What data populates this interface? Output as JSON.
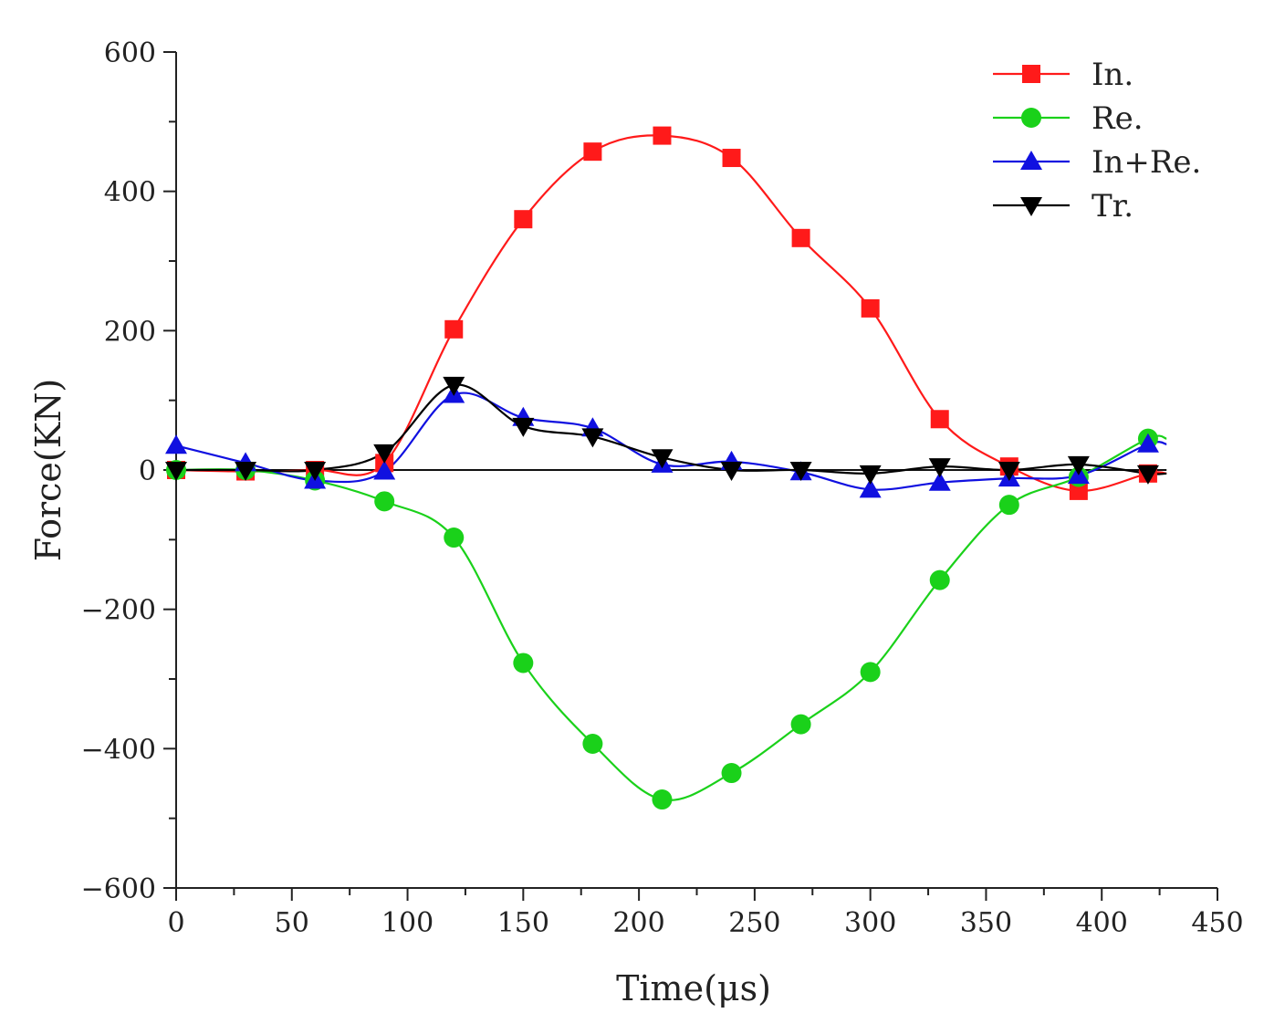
{
  "chart_data": {
    "type": "line",
    "title": "",
    "xlabel": "Time(μs)",
    "ylabel": "Force(KN)",
    "xlim": [
      0,
      450
    ],
    "ylim": [
      -600,
      600
    ],
    "xticks": [
      0,
      50,
      100,
      150,
      200,
      250,
      300,
      350,
      400,
      450
    ],
    "yticks": [
      -600,
      -400,
      -200,
      0,
      200,
      400,
      600
    ],
    "xtick_labels": [
      "0",
      "50",
      "100",
      "150",
      "200",
      "250",
      "300",
      "350",
      "400",
      "450"
    ],
    "ytick_labels": [
      "-600",
      "-400",
      "-200",
      "0",
      "200",
      "400",
      "600"
    ],
    "legend_position": "top-right",
    "grid": false,
    "series": [
      {
        "name": "In.",
        "color": "#ff1a1a",
        "marker": "square",
        "x": [
          0,
          30,
          60,
          90,
          120,
          150,
          180,
          210,
          240,
          270,
          300,
          330,
          360,
          390,
          420
        ],
        "y": [
          0,
          -2,
          0,
          10,
          202,
          360,
          457,
          480,
          448,
          333,
          232,
          73,
          5,
          -30,
          -5
        ]
      },
      {
        "name": "Re.",
        "color": "#1ad11a",
        "marker": "circle",
        "x": [
          0,
          30,
          60,
          90,
          120,
          150,
          180,
          210,
          240,
          270,
          300,
          330,
          360,
          390,
          420
        ],
        "y": [
          0,
          0,
          -15,
          -45,
          -97,
          -277,
          -393,
          -473,
          -435,
          -365,
          -290,
          -158,
          -50,
          -10,
          45
        ]
      },
      {
        "name": "In+Re.",
        "color": "#1010e0",
        "marker": "triangle-up",
        "x": [
          0,
          30,
          60,
          90,
          120,
          150,
          180,
          210,
          240,
          270,
          300,
          330,
          360,
          390,
          420
        ],
        "y": [
          35,
          10,
          -15,
          -2,
          108,
          75,
          60,
          8,
          12,
          -3,
          -28,
          -18,
          -12,
          -8,
          37
        ]
      },
      {
        "name": "Tr.",
        "color": "#000000",
        "marker": "triangle-down",
        "x": [
          0,
          30,
          60,
          90,
          120,
          150,
          180,
          210,
          240,
          270,
          300,
          330,
          360,
          390,
          420
        ],
        "y": [
          0,
          0,
          0,
          25,
          122,
          63,
          48,
          18,
          0,
          0,
          -5,
          5,
          0,
          8,
          -5
        ]
      }
    ]
  }
}
